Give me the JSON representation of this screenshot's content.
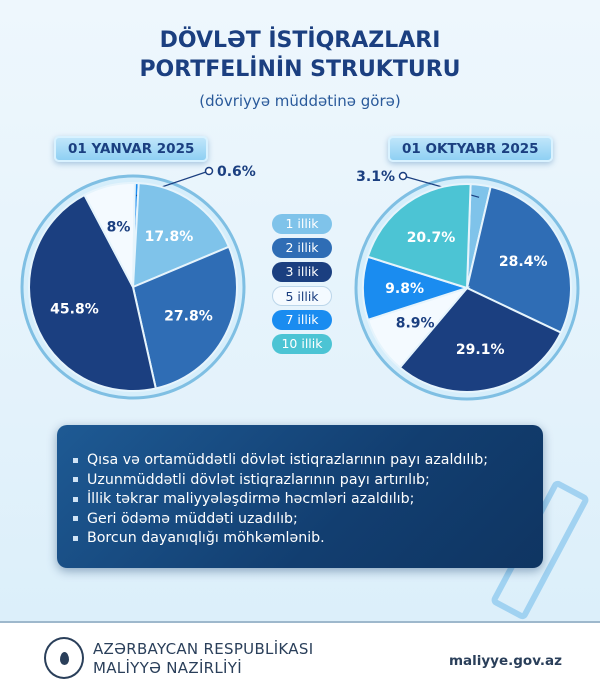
{
  "header": {
    "title_line1": "DÖVLƏT İSTİQRAZLARI",
    "title_line2": "PORTFELİNİN STRUKTURU",
    "subtitle": "(dövriyyə müddətinə görə)"
  },
  "chart_data": [
    {
      "type": "pie",
      "title": "01 YANVAR 2025",
      "slices": [
        {
          "category": "7 illik",
          "value": 0.6,
          "label": "0.6%"
        },
        {
          "category": "1 illik",
          "value": 17.8,
          "label": "17.8%"
        },
        {
          "category": "2 illik",
          "value": 27.8,
          "label": "27.8%"
        },
        {
          "category": "3 illik",
          "value": 45.8,
          "label": "45.8%"
        },
        {
          "category": "5 illik",
          "value": 8,
          "label": "8%"
        }
      ]
    },
    {
      "type": "pie",
      "title": "01 OKTYABR 2025",
      "slices": [
        {
          "category": "1 illik",
          "value": 3.1,
          "label": "3.1%"
        },
        {
          "category": "2 illik",
          "value": 28.4,
          "label": "28.4%"
        },
        {
          "category": "3 illik",
          "value": 29.1,
          "label": "29.1%"
        },
        {
          "category": "5 illik",
          "value": 8.9,
          "label": "8.9%"
        },
        {
          "category": "7 illik",
          "value": 9.8,
          "label": "9.8%"
        },
        {
          "category": "10 illik",
          "value": 20.7,
          "label": "20.7%"
        }
      ]
    }
  ],
  "legend": [
    {
      "label": "1 illik",
      "color": "#7fc3ea",
      "text": "#fff"
    },
    {
      "label": "2 illik",
      "color": "#2f6db5",
      "text": "#fff"
    },
    {
      "label": "3 illik",
      "color": "#1b3f80",
      "text": "#fff"
    },
    {
      "label": "5 illik",
      "color": "#f4faff",
      "text": "#1b3f80"
    },
    {
      "label": "7 illik",
      "color": "#1a8cf0",
      "text": "#fff"
    },
    {
      "label": "10 illik",
      "color": "#4cc4d4",
      "text": "#fff"
    }
  ],
  "bullets": [
    "Qısa və ortamüddətli dövlət istiqrazlarının payı azaldılıb;",
    "Uzunmüddətli dövlət  istiqrazlarının payı artırılıb;",
    "İllik təkrar maliyyələşdirmə həcmləri azaldılıb;",
    "Geri ödəmə müddəti uzadılıb;",
    "Borcun dayanıqlığı möhkəmlənib."
  ],
  "footer": {
    "org_line1": "AZƏRBAYCAN RESPUBLİKASI",
    "org_line2": "MALİYYƏ NAZİRLİYİ",
    "website": "maliyye.gov.az"
  }
}
